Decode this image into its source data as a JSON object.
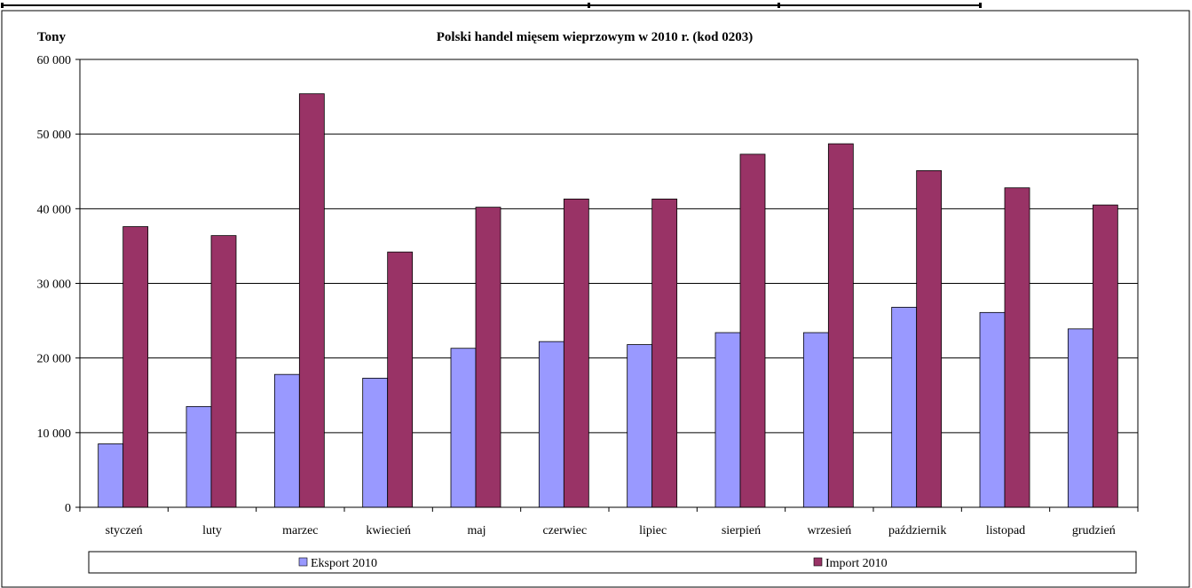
{
  "chart_data": {
    "type": "bar",
    "title": "Polski handel mięsem wieprzowym w 2010 r. (kod 0203)",
    "ylabel": "Tony",
    "xlabel": "",
    "ylim": [
      0,
      60000
    ],
    "yticks": [
      "0",
      "10 000",
      "20 000",
      "30 000",
      "40 000",
      "50 000",
      "60 000"
    ],
    "ytick_values": [
      0,
      10000,
      20000,
      30000,
      40000,
      50000,
      60000
    ],
    "categories": [
      "styczeń",
      "luty",
      "marzec",
      "kwiecień",
      "maj",
      "czerwiec",
      "lipiec",
      "sierpień",
      "wrzesień",
      "październik",
      "listopad",
      "grudzień"
    ],
    "series": [
      {
        "name": "Eksport 2010",
        "color": "#9999ff",
        "values": [
          8500,
          13500,
          17800,
          17300,
          21300,
          22200,
          21800,
          23400,
          23400,
          26800,
          26100,
          23900
        ]
      },
      {
        "name": "Import 2010",
        "color": "#993366",
        "values": [
          37600,
          36400,
          55400,
          34200,
          40200,
          41300,
          41300,
          47300,
          48700,
          45100,
          42800,
          40500
        ]
      }
    ],
    "grid": true,
    "legend": "bottom"
  }
}
